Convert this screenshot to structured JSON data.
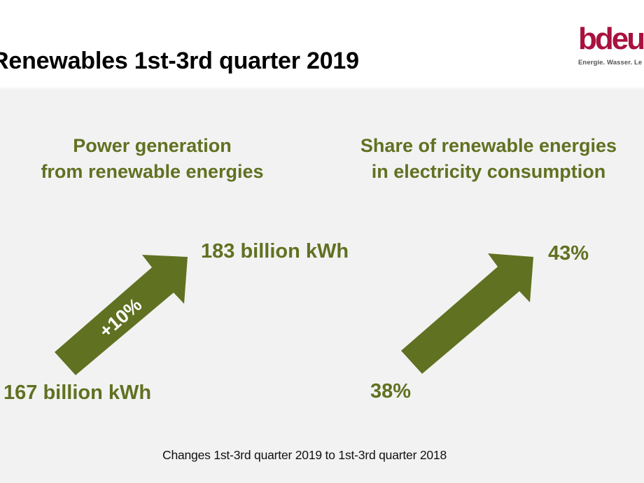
{
  "header": {
    "title": "Renewables 1st-3rd quarter 2019",
    "logo": {
      "mark": "bdeu",
      "tagline": "Energie. Wasser. Le",
      "color": "#a8123e"
    }
  },
  "panels": [
    {
      "heading_line1": "Power generation",
      "heading_line2": "from renewable energies",
      "start_value": "167 billion kWh",
      "end_value": "183 billion kWh",
      "change_label": "+10%",
      "arrow_icon": "arrow-up-right-icon"
    },
    {
      "heading_line1": "Share of renewable energies",
      "heading_line2": "in electricity consumption",
      "start_value": "38%",
      "end_value": "43%",
      "arrow_icon": "arrow-up-right-icon"
    }
  ],
  "footnote": "Changes 1st-3rd quarter 2019 to 1st-3rd quarter 2018",
  "colors": {
    "accent": "#607121",
    "background": "#f2f2f2",
    "header_background": "#ffffff"
  }
}
